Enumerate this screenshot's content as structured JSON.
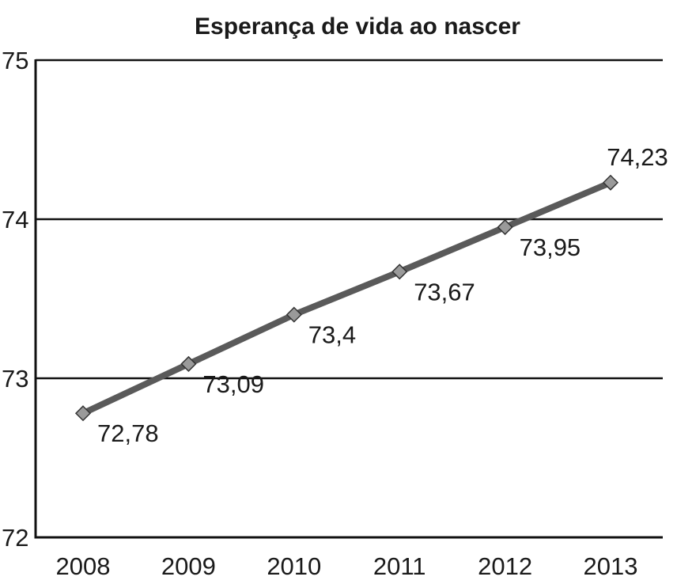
{
  "chart_data": {
    "type": "line",
    "title": "Esperança de vida ao nascer",
    "xlabel": "",
    "ylabel": "",
    "categories": [
      "2008",
      "2009",
      "2010",
      "2011",
      "2012",
      "2013"
    ],
    "series": [
      {
        "values": [
          72.78,
          73.09,
          73.4,
          73.67,
          73.95,
          74.23
        ],
        "labels": [
          "72,78",
          "73,09",
          "73,4",
          "73,67",
          "73,95",
          "74,23"
        ]
      }
    ],
    "ylim": [
      72,
      75
    ],
    "yticks": [
      72,
      73,
      74,
      75
    ],
    "ytick_labels": [
      "72",
      "73",
      "74",
      "75"
    ],
    "grid": true,
    "legend": "none",
    "line_color": "#5a5a5a",
    "marker": "diamond",
    "marker_color": "#9a9a9a"
  }
}
